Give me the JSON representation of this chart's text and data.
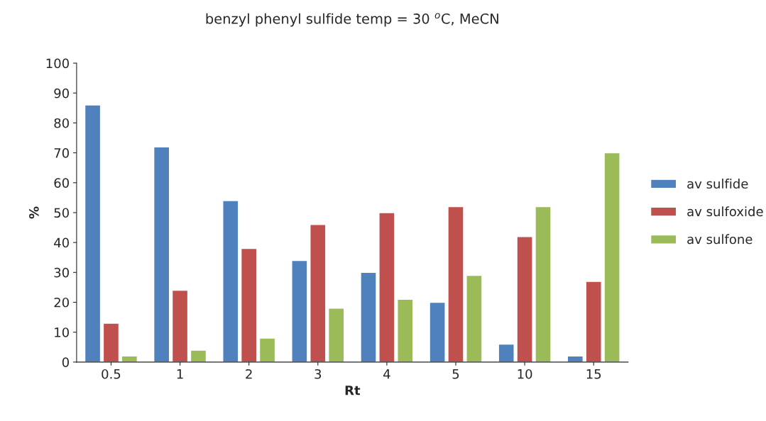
{
  "chart_data": {
    "type": "bar",
    "title": "benzyl phenyl sulfide temp = 30 $^{o}$C, MeCN",
    "xlabel": "Rt",
    "ylabel": "%",
    "categories": [
      "0.5",
      "1",
      "2",
      "3",
      "4",
      "5",
      "10",
      "15"
    ],
    "series": [
      {
        "name": "av sulfide",
        "color": "#4f81bd",
        "values": [
          86,
          72,
          54,
          34,
          30,
          20,
          6,
          2
        ]
      },
      {
        "name": "av sulfoxide",
        "color": "#c0504d",
        "values": [
          13,
          24,
          38,
          46,
          50,
          52,
          42,
          27
        ]
      },
      {
        "name": "av sulfone",
        "color": "#9bbb59",
        "values": [
          2,
          4,
          8,
          18,
          21,
          29,
          52,
          70
        ]
      }
    ],
    "ylim": [
      0,
      100
    ],
    "yticks": [
      0,
      10,
      20,
      30,
      40,
      50,
      60,
      70,
      80,
      90,
      100
    ],
    "grid": false,
    "legend": "right"
  }
}
